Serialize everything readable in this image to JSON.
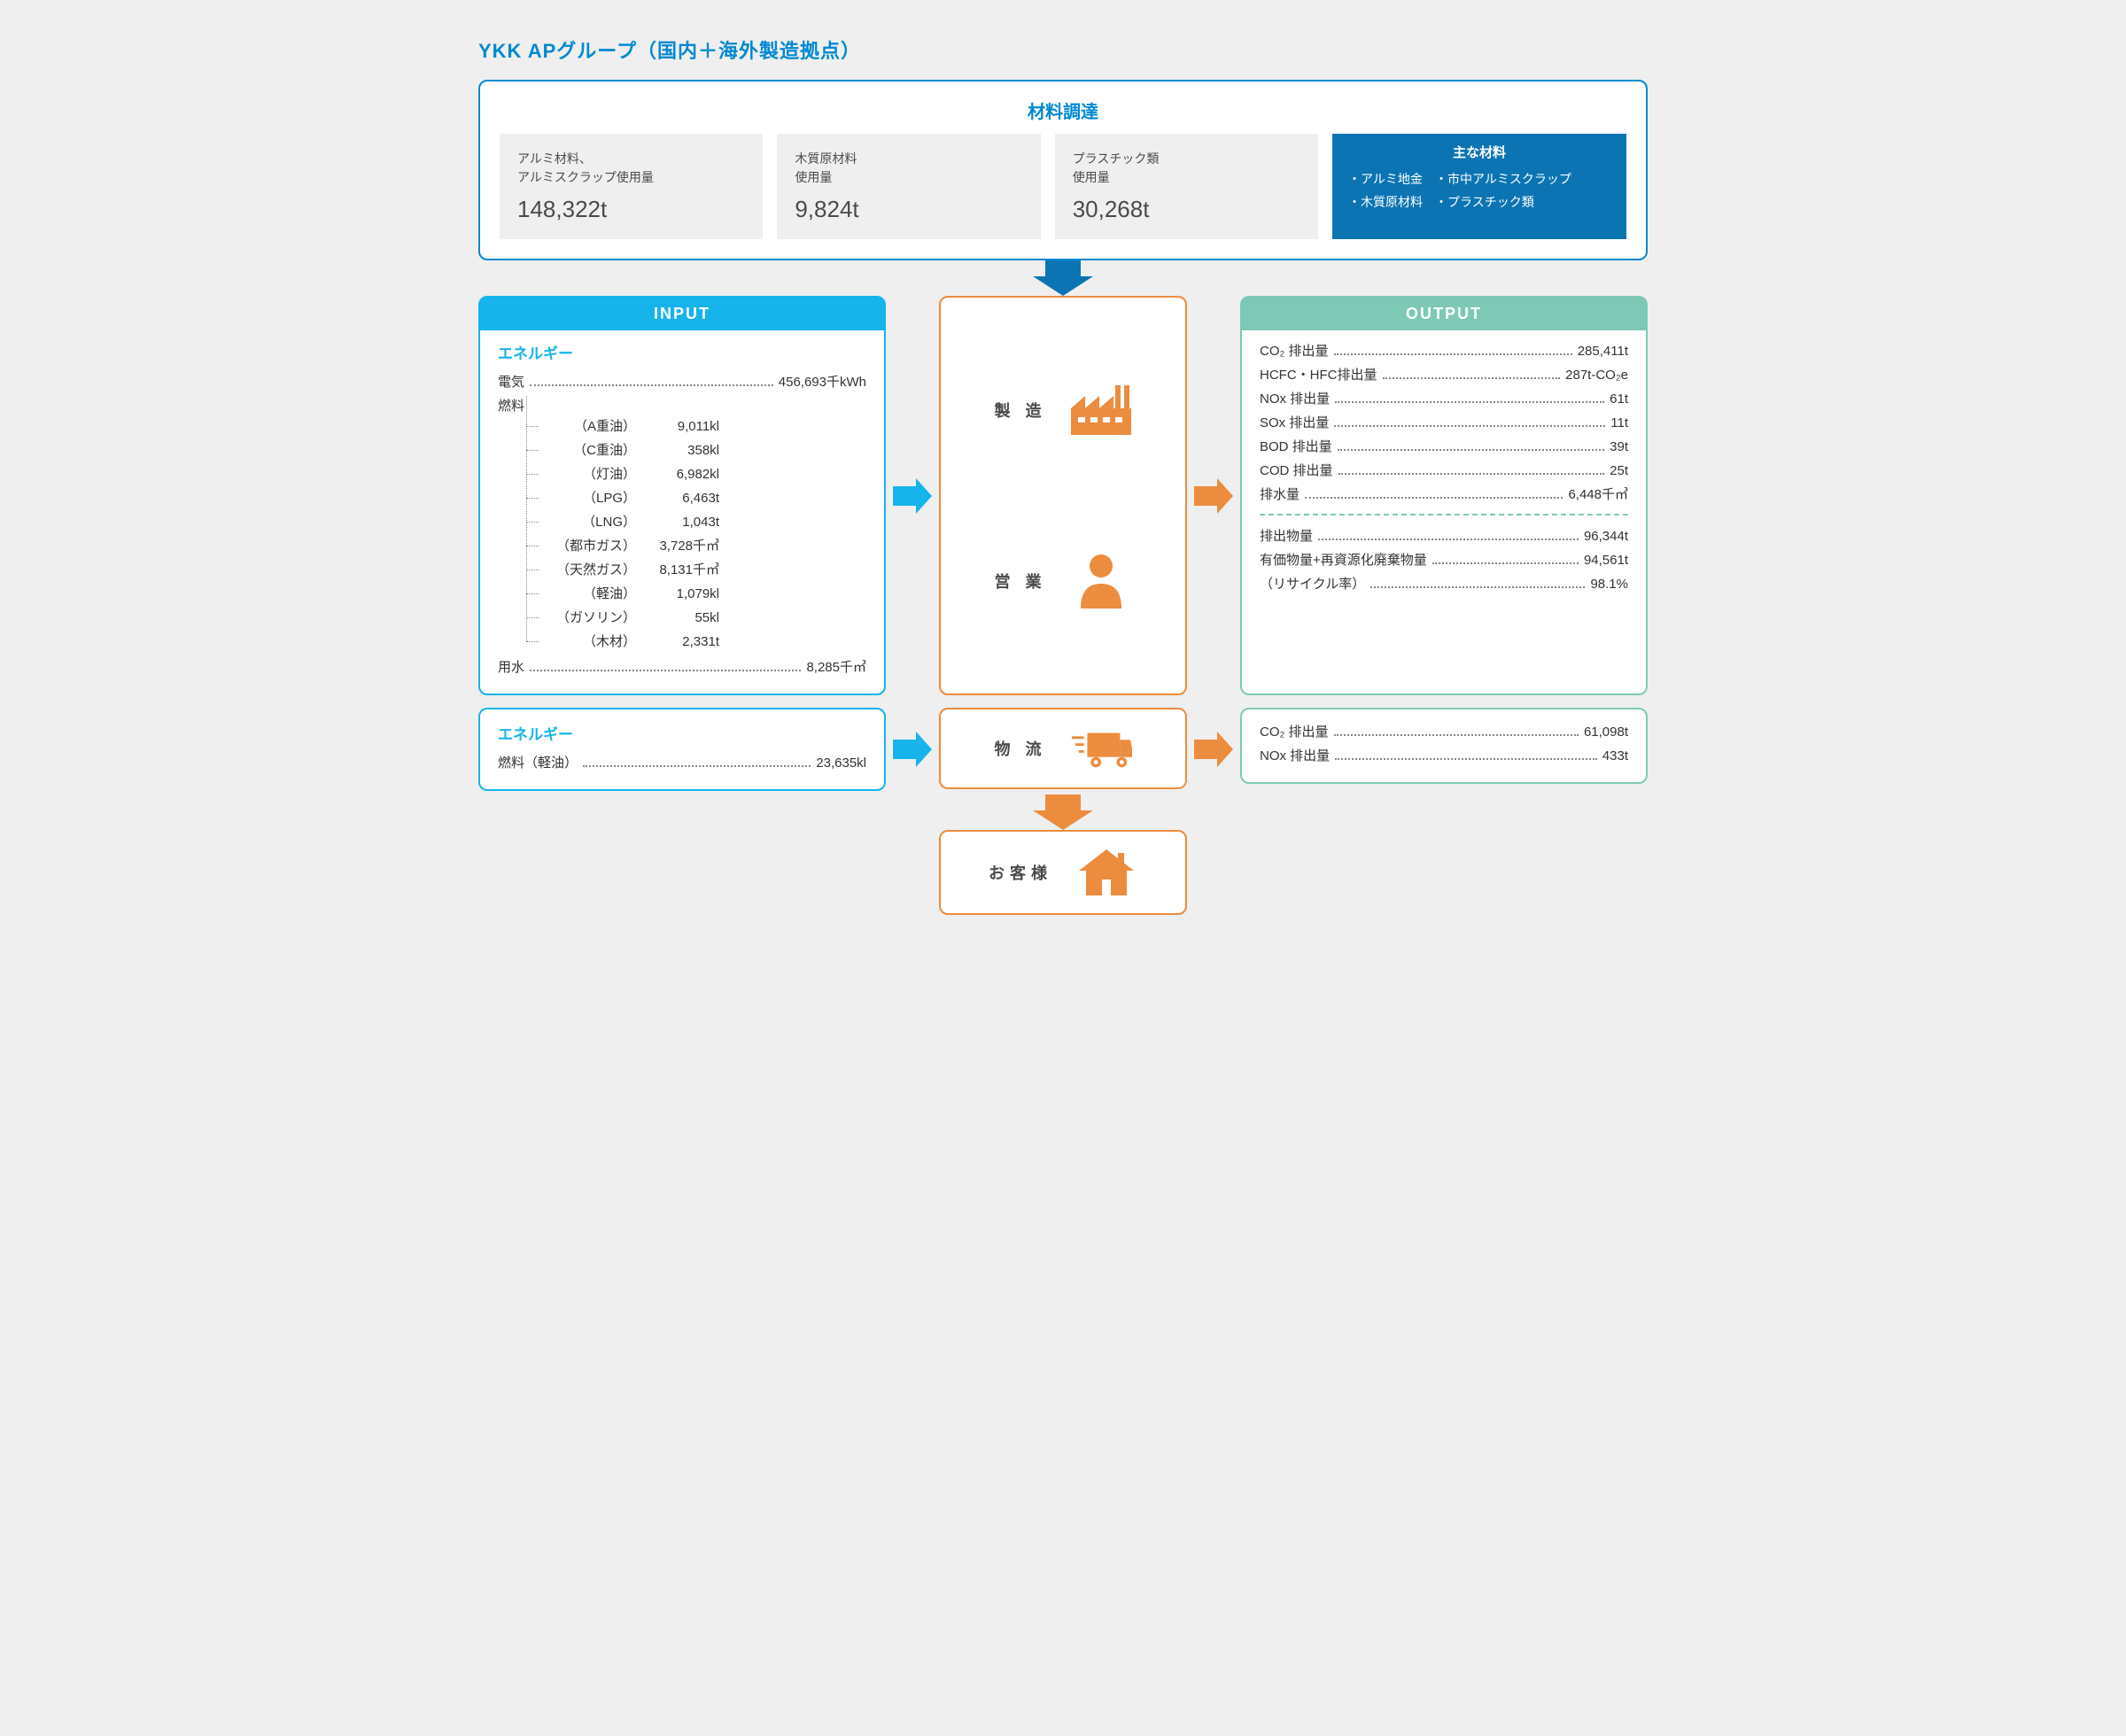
{
  "title": "YKK APグループ（国内＋海外製造拠点）",
  "colors": {
    "primary_blue": "#0089d1",
    "dark_blue": "#0c74b3",
    "light_blue": "#16b4eb",
    "orange": "#ec8c3f",
    "teal": "#7ec9b6",
    "bg": "#efefef",
    "card_bg": "#efefef",
    "text": "#4a4a4a"
  },
  "materials": {
    "title": "材料調達",
    "cards": [
      {
        "label": "アルミ材料、\nアルミスクラップ使用量",
        "value": "148,322t"
      },
      {
        "label": "木質原材料\n使用量",
        "value": "9,824t"
      },
      {
        "label": "プラスチック類\n使用量",
        "value": "30,268t"
      }
    ],
    "main_title": "主な材料",
    "main_items": [
      "・アルミ地金",
      "・市中アルミスクラップ",
      "・木質原材料",
      "・プラスチック類"
    ]
  },
  "input": {
    "header": "INPUT",
    "section_title": "エネルギー",
    "rows": [
      {
        "label": "電気",
        "value": "456,693千kWh"
      }
    ],
    "fuel_label": "燃料",
    "fuels": [
      {
        "name": "（A重油）",
        "value": "9,011kl"
      },
      {
        "name": "（C重油）",
        "value": "358kl"
      },
      {
        "name": "（灯油）",
        "value": "6,982kl"
      },
      {
        "name": "（LPG）",
        "value": "6,463t"
      },
      {
        "name": "（LNG）",
        "value": "1,043t"
      },
      {
        "name": "（都市ガス）",
        "value": "3,728千㎥"
      },
      {
        "name": "（天然ガス）",
        "value": "8,131千㎥"
      },
      {
        "name": "（軽油）",
        "value": "1,079kl"
      },
      {
        "name": "（ガソリン）",
        "value": "55kl"
      },
      {
        "name": "（木材）",
        "value": "2,331t"
      }
    ],
    "water": {
      "label": "用水",
      "value": "8,285千㎥"
    }
  },
  "input2": {
    "section_title": "エネルギー",
    "row": {
      "label": "燃料（軽油）",
      "value": "23,635kl"
    }
  },
  "center": {
    "items": [
      {
        "label": "製 造",
        "icon": "factory"
      },
      {
        "label": "営 業",
        "icon": "person"
      }
    ],
    "logistics": {
      "label": "物 流",
      "icon": "truck"
    },
    "customer": {
      "label": "お客様",
      "icon": "house"
    }
  },
  "output": {
    "header": "OUTPUT",
    "rows1": [
      {
        "label": "CO₂ 排出量",
        "value": "285,411t"
      },
      {
        "label": "HCFC・HFC排出量",
        "value": "287t-CO₂e"
      },
      {
        "label": "NOx 排出量",
        "value": "61t"
      },
      {
        "label": "SOx 排出量",
        "value": "11t"
      },
      {
        "label": "BOD 排出量",
        "value": "39t"
      },
      {
        "label": "COD 排出量",
        "value": "25t"
      },
      {
        "label": "排水量",
        "value": "6,448千㎥"
      }
    ],
    "rows2": [
      {
        "label": "排出物量",
        "value": "96,344t"
      },
      {
        "label": "有価物量+再資源化廃棄物量",
        "value": "94,561t"
      },
      {
        "label": "（リサイクル率）",
        "value": "98.1%"
      }
    ]
  },
  "output2": {
    "rows": [
      {
        "label": "CO₂ 排出量",
        "value": "61,098t"
      },
      {
        "label": "NOx 排出量",
        "value": "433t"
      }
    ]
  }
}
